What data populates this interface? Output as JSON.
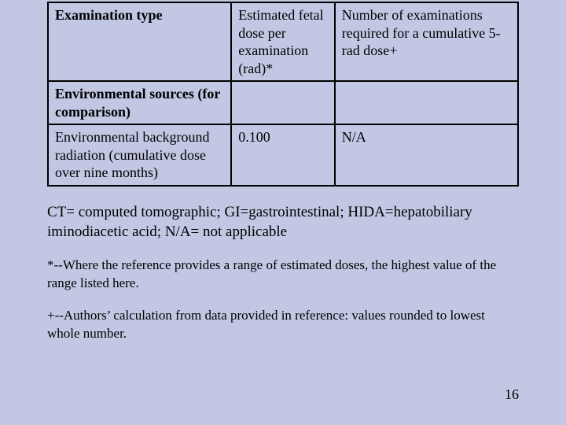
{
  "table": {
    "header": {
      "col1": "Examination type",
      "col2": "Estimated fetal dose per examination (rad)*",
      "col3": "Number of examinations required for a cumulative 5-rad dose+"
    },
    "section_row": {
      "col1": "Environmental sources (for comparison)",
      "col2": "",
      "col3": ""
    },
    "data_row": {
      "col1": "Environmental background radiation (cumulative dose over nine months)",
      "col2": "0.100",
      "col3": "N/A"
    }
  },
  "notes": {
    "abbrev": "CT= computed tomographic; GI=gastrointestinal; HIDA=hepatobiliary iminodiacetic acid; N/A= not applicable",
    "note_star": "*--Where the reference provides a range of estimated doses, the highest value of the range listed here.",
    "note_plus": "+--Authors’ calculation from data provided in reference: values rounded to lowest whole number."
  },
  "page_number": "16"
}
